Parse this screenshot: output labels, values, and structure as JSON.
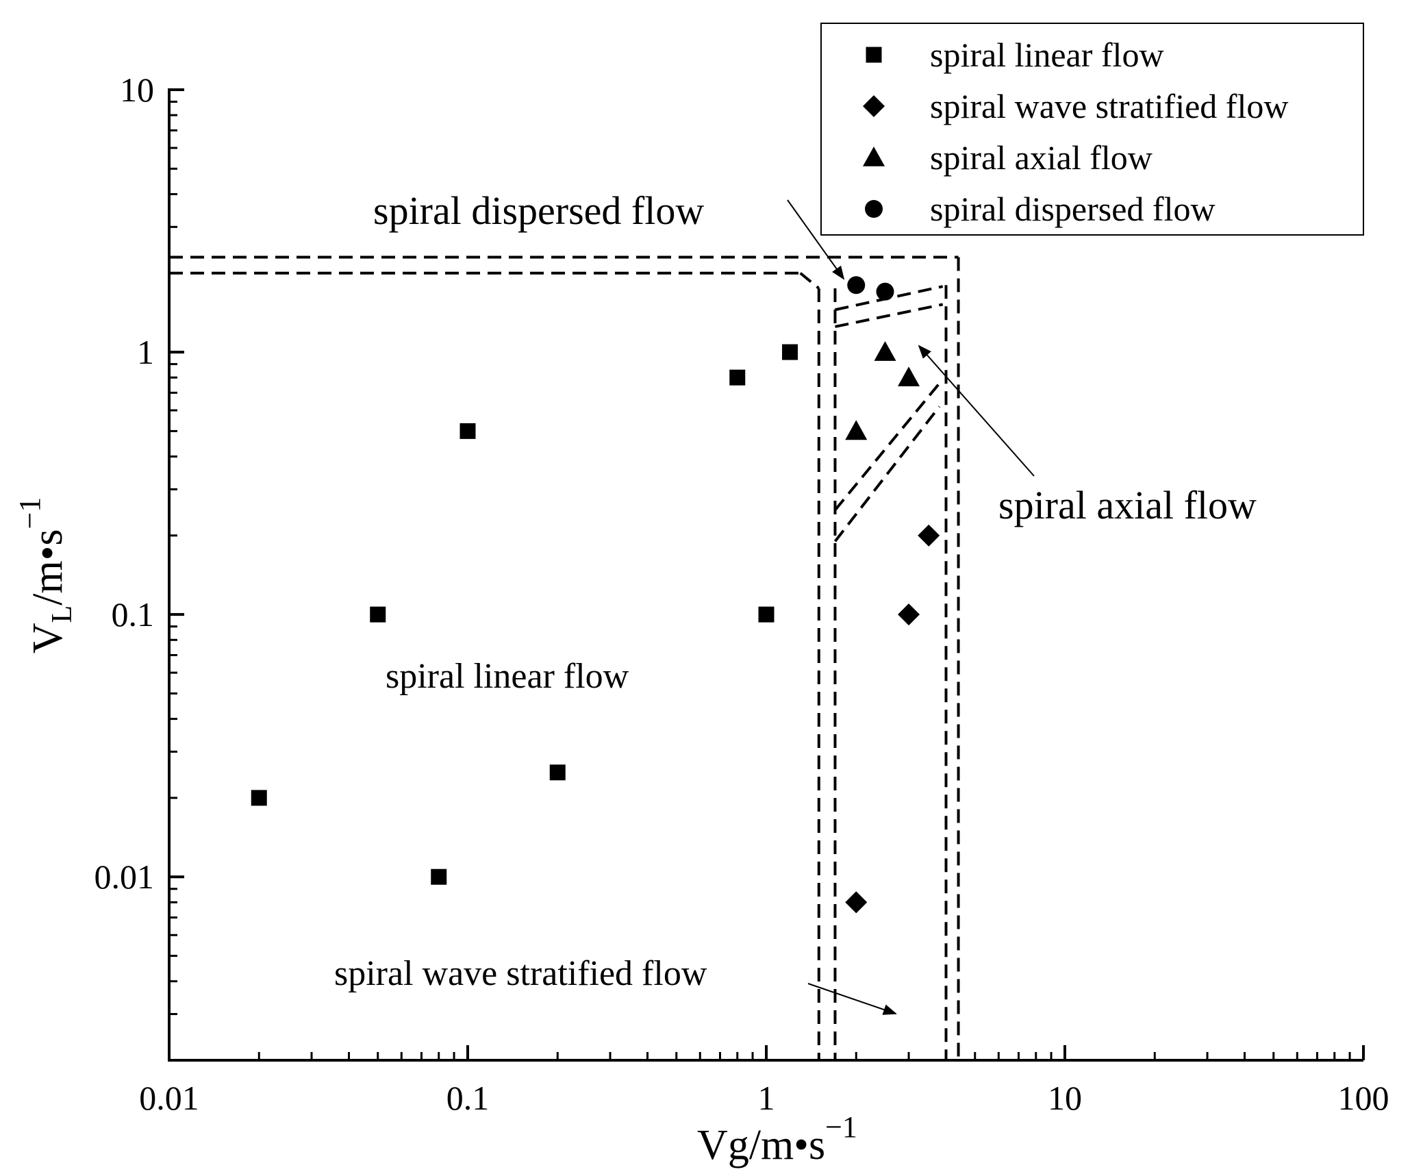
{
  "chart_data": {
    "type": "scatter",
    "title": "",
    "xlabel": "Vg/m•s",
    "xlabel_exp": "−1",
    "ylabel_main": "V",
    "ylabel_sub": "L",
    "ylabel_rest": "/m•s",
    "ylabel_exp": "−1",
    "xscale": "log",
    "yscale": "log",
    "xlim": [
      0.01,
      100
    ],
    "ylim": [
      0.002,
      10
    ],
    "x_ticks": [
      {
        "value": 0.01,
        "label": "0.01"
      },
      {
        "value": 0.1,
        "label": "0.1"
      },
      {
        "value": 1,
        "label": "1"
      },
      {
        "value": 10,
        "label": "10"
      },
      {
        "value": 100,
        "label": "100"
      }
    ],
    "y_ticks": [
      {
        "value": 0.01,
        "label": "0.01"
      },
      {
        "value": 0.1,
        "label": "0.1"
      },
      {
        "value": 1,
        "label": "1"
      },
      {
        "value": 10,
        "label": "10"
      }
    ],
    "grid": false,
    "legend_position": "top-right",
    "series": [
      {
        "name": "spiral linear flow",
        "marker": "square",
        "points": [
          {
            "x": 0.02,
            "y": 0.02
          },
          {
            "x": 0.05,
            "y": 0.1
          },
          {
            "x": 0.08,
            "y": 0.01
          },
          {
            "x": 0.1,
            "y": 0.5
          },
          {
            "x": 0.2,
            "y": 0.025
          },
          {
            "x": 0.8,
            "y": 0.8
          },
          {
            "x": 1.0,
            "y": 0.1
          },
          {
            "x": 1.2,
            "y": 1.0
          }
        ]
      },
      {
        "name": "spiral wave stratified flow",
        "marker": "diamond",
        "points": [
          {
            "x": 2.0,
            "y": 0.008
          },
          {
            "x": 3.0,
            "y": 0.1
          },
          {
            "x": 3.5,
            "y": 0.2
          }
        ]
      },
      {
        "name": "spiral axial flow",
        "marker": "triangle",
        "points": [
          {
            "x": 2.0,
            "y": 0.5
          },
          {
            "x": 2.5,
            "y": 1.0
          },
          {
            "x": 3.0,
            "y": 0.8
          }
        ]
      },
      {
        "name": "spiral dispersed flow",
        "marker": "circle",
        "points": [
          {
            "x": 2.0,
            "y": 1.8
          },
          {
            "x": 2.5,
            "y": 1.7
          }
        ]
      }
    ],
    "boundaries": [
      {
        "name": "outer",
        "corner_x": 4.4,
        "top_y": 2.3
      },
      {
        "name": "inner",
        "corner_x": 4.0,
        "top_y": 2.0
      },
      {
        "name": "left-outer",
        "x": 1.5
      },
      {
        "name": "left-inner",
        "x": 1.7
      }
    ],
    "annotations": [
      {
        "text": "spiral dispersed flow"
      },
      {
        "text": "spiral axial flow"
      },
      {
        "text": "spiral linear flow"
      },
      {
        "text": "spiral wave stratified flow"
      }
    ]
  }
}
